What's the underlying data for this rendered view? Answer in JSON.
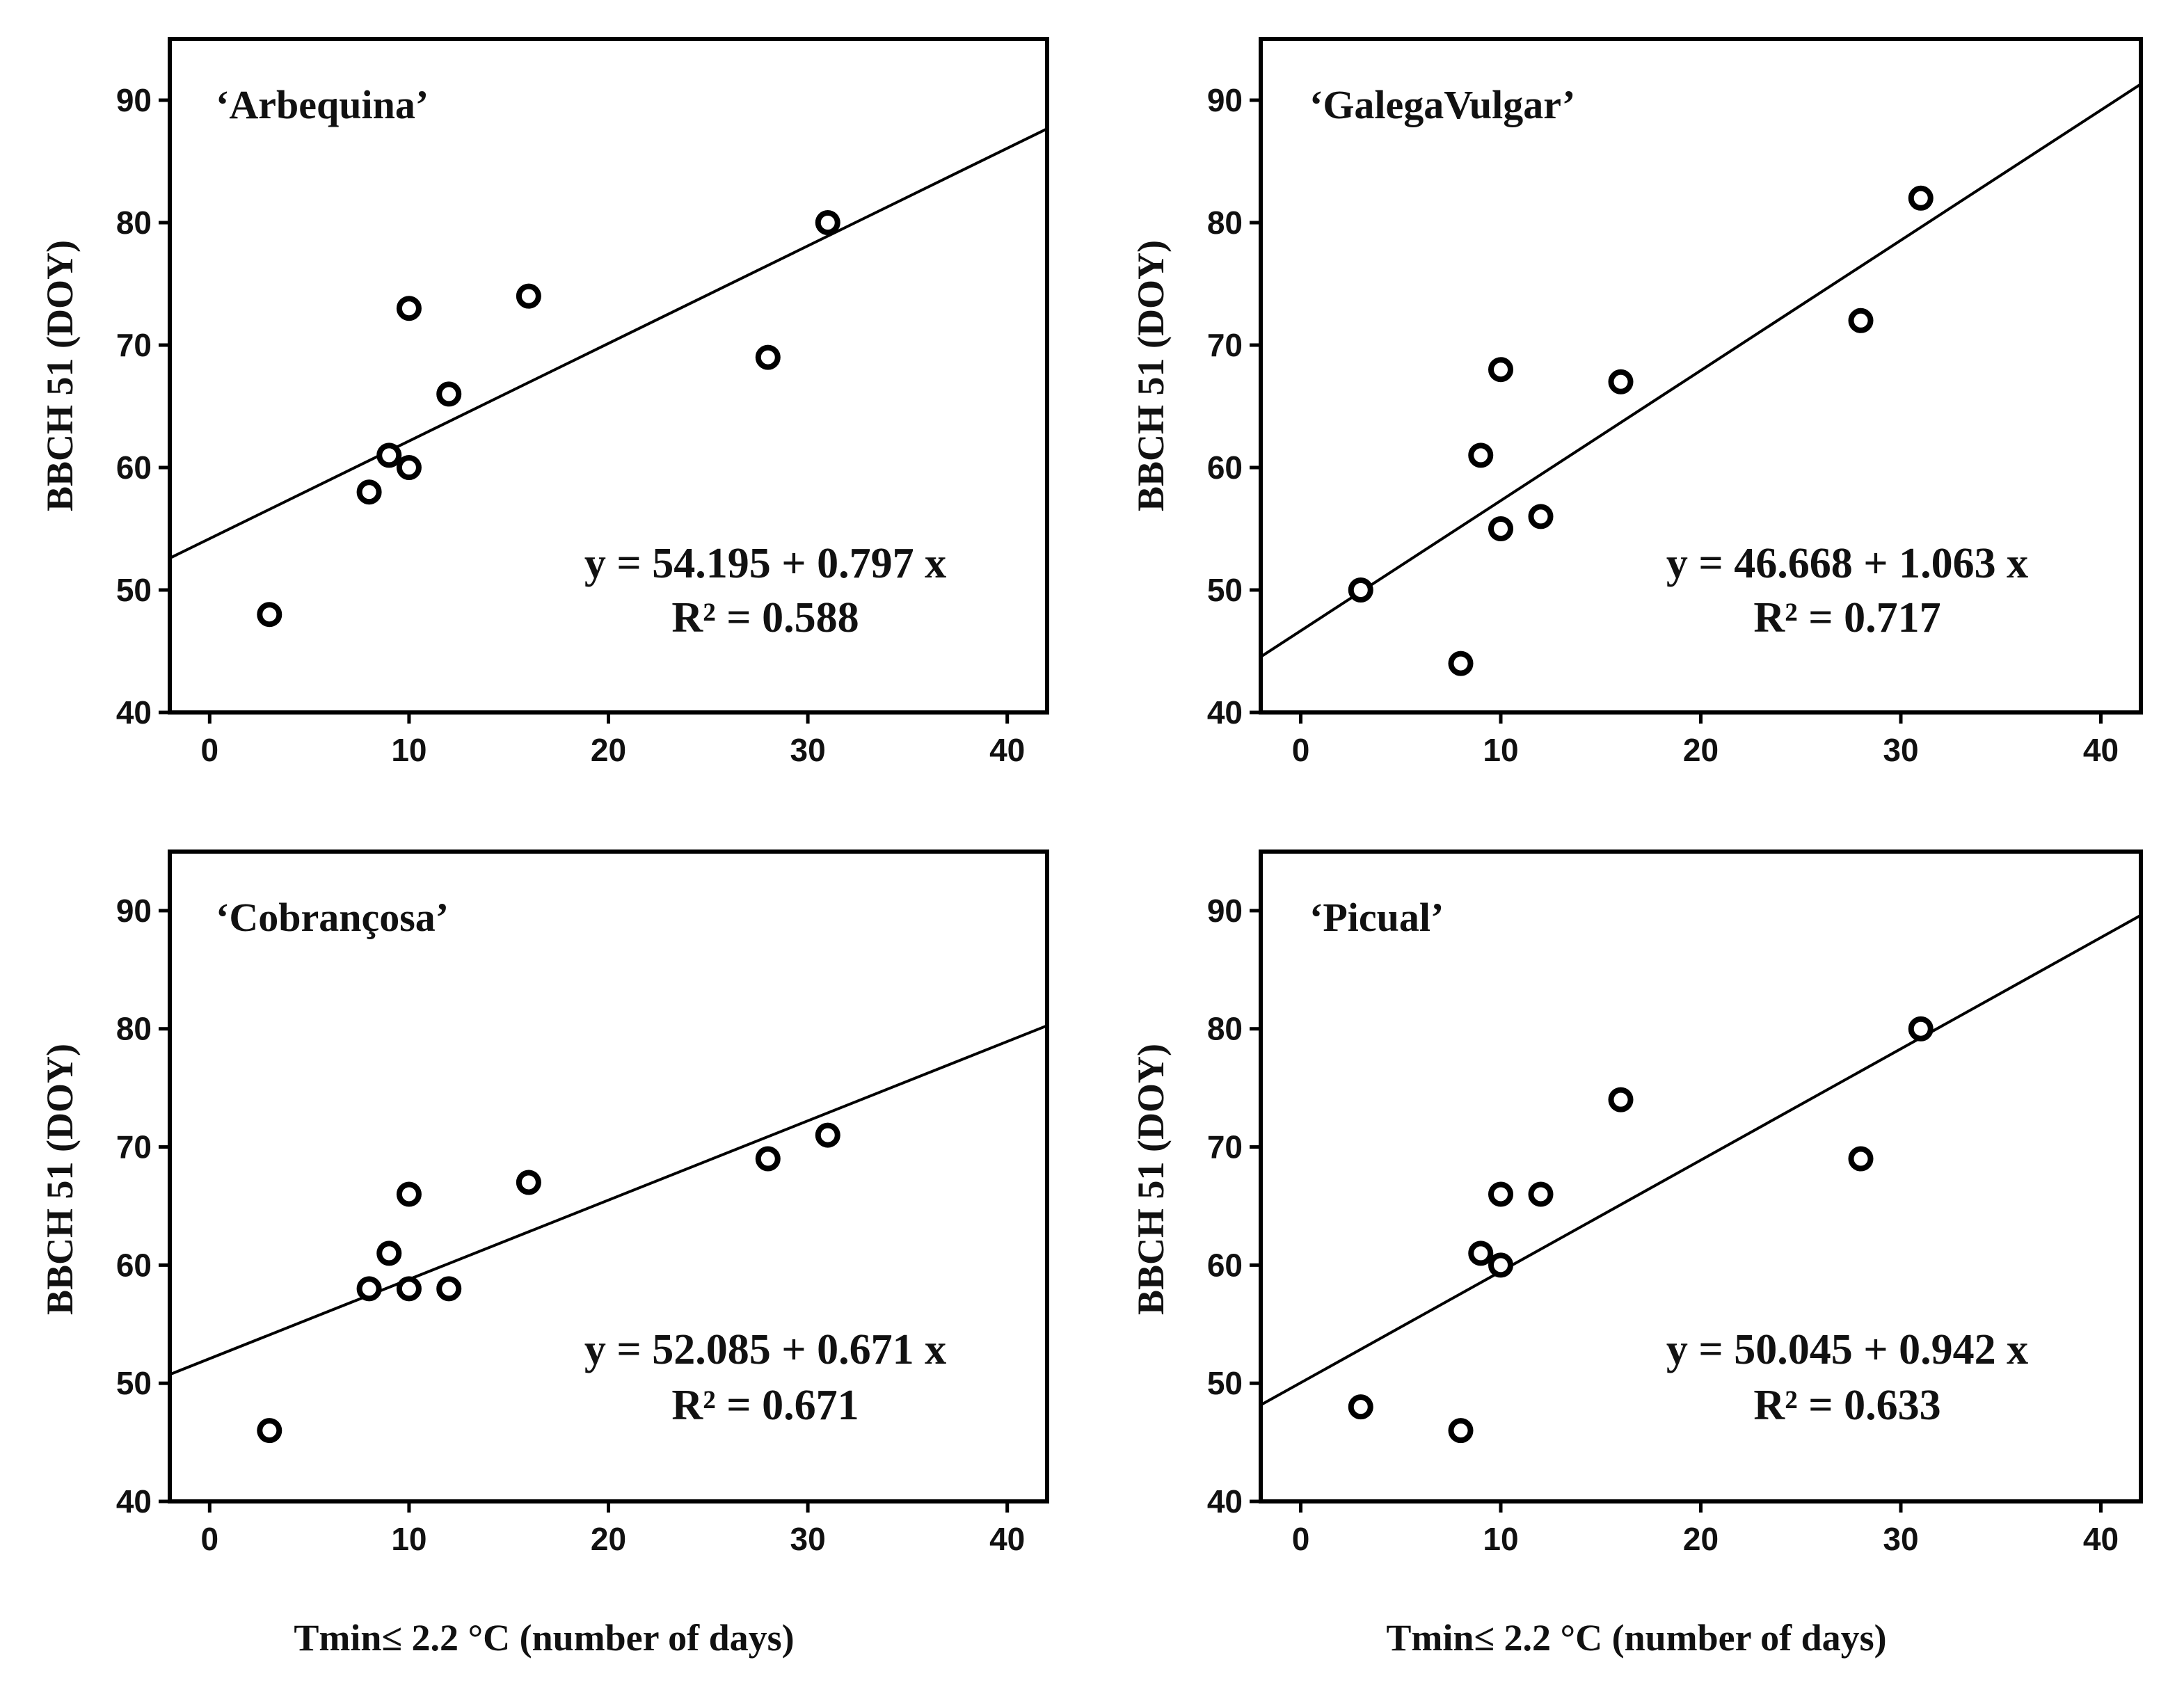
{
  "figure": {
    "xlabel": "Tmin≤ 2.2 °C (number of days)",
    "ylabel": "BBCH 51 (DOY)"
  },
  "chart_data": [
    {
      "type": "scatter",
      "title": "‘Arbequina’",
      "xlabel": "Tmin≤ 2.2 °C (number of days)",
      "ylabel": "BBCH 51 (DOY)",
      "xlim": [
        -2,
        42
      ],
      "ylim": [
        40,
        95
      ],
      "xticks": [
        0,
        10,
        20,
        30,
        40
      ],
      "yticks": [
        40,
        50,
        60,
        70,
        80,
        90
      ],
      "x": [
        3,
        8,
        9,
        10,
        10,
        12,
        16,
        28,
        31
      ],
      "y": [
        48,
        58,
        61,
        73,
        60,
        66,
        74,
        69,
        80
      ],
      "fit": {
        "intercept": 54.195,
        "slope": 0.797
      },
      "equation": "y = 54.195 + 0.797 x",
      "r2": "R² = 0.588"
    },
    {
      "type": "scatter",
      "title": "‘GalegaVulgar’",
      "xlabel": "Tmin≤ 2.2 °C (number of days)",
      "ylabel": "BBCH 51 (DOY)",
      "xlim": [
        -2,
        42
      ],
      "ylim": [
        40,
        95
      ],
      "xticks": [
        0,
        10,
        20,
        30,
        40
      ],
      "yticks": [
        40,
        50,
        60,
        70,
        80,
        90
      ],
      "x": [
        3,
        8,
        9,
        10,
        10,
        12,
        16,
        28,
        31
      ],
      "y": [
        50,
        44,
        61,
        68,
        55,
        56,
        67,
        72,
        82
      ],
      "fit": {
        "intercept": 46.668,
        "slope": 1.063
      },
      "equation": "y = 46.668 + 1.063 x",
      "r2": "R² = 0.717"
    },
    {
      "type": "scatter",
      "title": "‘Cobrançosa’",
      "xlabel": "Tmin≤ 2.2 °C (number of days)",
      "ylabel": "BBCH 51 (DOY)",
      "xlim": [
        -2,
        42
      ],
      "ylim": [
        40,
        95
      ],
      "xticks": [
        0,
        10,
        20,
        30,
        40
      ],
      "yticks": [
        40,
        50,
        60,
        70,
        80,
        90
      ],
      "x": [
        3,
        8,
        9,
        10,
        10,
        12,
        16,
        28,
        31
      ],
      "y": [
        46,
        58,
        61,
        66,
        58,
        58,
        67,
        69,
        71
      ],
      "fit": {
        "intercept": 52.085,
        "slope": 0.671
      },
      "equation": "y = 52.085 + 0.671 x",
      "r2": "R² = 0.671"
    },
    {
      "type": "scatter",
      "title": "‘Picual’",
      "xlabel": "Tmin≤ 2.2 °C (number of days)",
      "ylabel": "BBCH 51 (DOY)",
      "xlim": [
        -2,
        42
      ],
      "ylim": [
        40,
        95
      ],
      "xticks": [
        0,
        10,
        20,
        30,
        40
      ],
      "yticks": [
        40,
        50,
        60,
        70,
        80,
        90
      ],
      "x": [
        3,
        8,
        9,
        10,
        10,
        12,
        16,
        28,
        31
      ],
      "y": [
        48,
        46,
        61,
        66,
        60,
        66,
        74,
        69,
        80
      ],
      "fit": {
        "intercept": 50.045,
        "slope": 0.942
      },
      "equation": "y = 50.045 + 0.942 x",
      "r2": "R² = 0.633"
    }
  ]
}
